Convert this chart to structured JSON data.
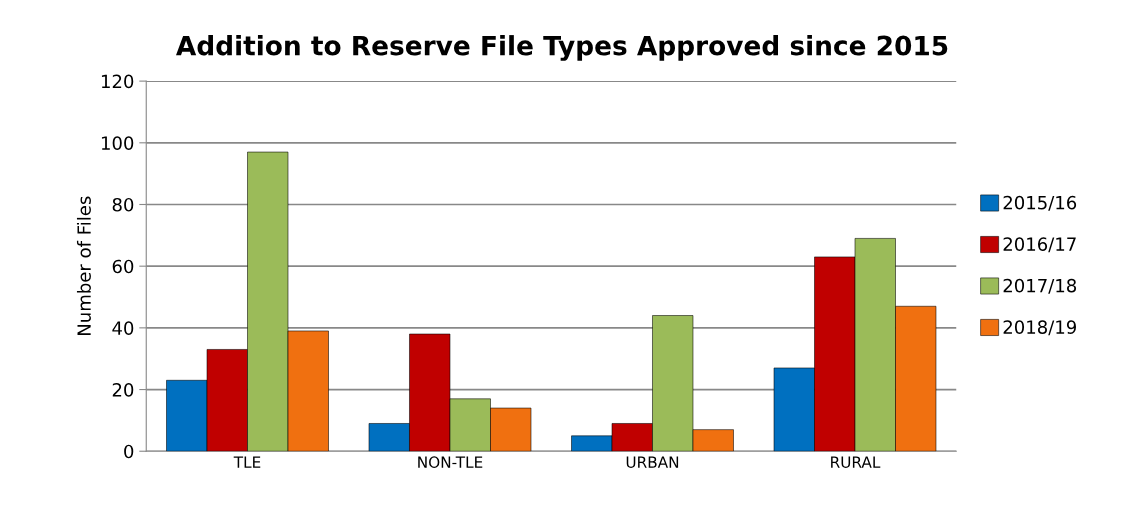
{
  "chart_data": {
    "type": "bar",
    "title": "Addition to Reserve File Types Approved since 2015",
    "ylabel": "Number of Files",
    "categories": [
      "TLE",
      "NON-TLE",
      "URBAN",
      "RURAL"
    ],
    "series": [
      {
        "name": "2015/16",
        "color": "#0070c0",
        "values": [
          23,
          9,
          5,
          27
        ]
      },
      {
        "name": "2016/17",
        "color": "#c00000",
        "values": [
          33,
          38,
          9,
          63
        ]
      },
      {
        "name": "2017/18",
        "color": "#9bbb59",
        "values": [
          97,
          17,
          44,
          69
        ]
      },
      {
        "name": "2018/19",
        "color": "#f07010",
        "values": [
          39,
          14,
          7,
          47
        ]
      }
    ],
    "ylim": [
      0,
      120
    ],
    "yticks": [
      0,
      20,
      40,
      60,
      80,
      100,
      120
    ],
    "grid": "y",
    "legend": "right"
  }
}
